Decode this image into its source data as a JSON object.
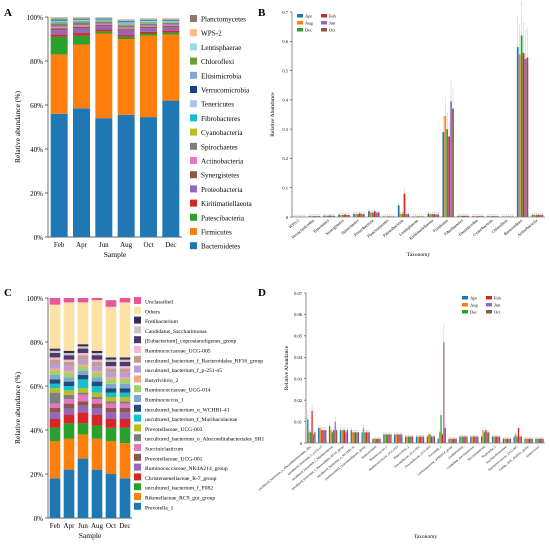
{
  "figure": {
    "panels": [
      {
        "id": "A"
      },
      {
        "id": "B"
      },
      {
        "id": "C"
      },
      {
        "id": "D"
      }
    ]
  },
  "chart_data": [
    {
      "panel": "A",
      "type": "bar",
      "stacked": true,
      "xlabel": "Sample",
      "ylabel": "Relative abundance (%)",
      "ylim": [
        0,
        100
      ],
      "yticks": [
        "0%",
        "20%",
        "40%",
        "60%",
        "80%",
        "100%"
      ],
      "categories": [
        "Feb",
        "Apr",
        "Jun",
        "Aug",
        "Oct",
        "Dec"
      ],
      "legend_position": "right",
      "series": [
        {
          "name": "Bacteroidetes",
          "color": "#1f77b4",
          "values": [
            56,
            58.5,
            54,
            55.5,
            54.5,
            62
          ]
        },
        {
          "name": "Firmicutes",
          "color": "#ff7f0e",
          "values": [
            27,
            29,
            38.5,
            34.5,
            37,
            30
          ]
        },
        {
          "name": "Patescibacteria",
          "color": "#2ca02c",
          "values": [
            8,
            4,
            1,
            1,
            1,
            1
          ]
        },
        {
          "name": "Kiritimatiellaeota",
          "color": "#d62728",
          "values": [
            1,
            1.2,
            0.8,
            0.8,
            0.8,
            0.8
          ]
        },
        {
          "name": "Proteobacteria",
          "color": "#9467bd",
          "values": [
            2,
            2,
            1.5,
            2,
            1.6,
            1.5
          ]
        },
        {
          "name": "Synergistetes",
          "color": "#8c564b",
          "values": [
            0.8,
            0.8,
            0.6,
            0.7,
            0.6,
            0.6
          ]
        },
        {
          "name": "Actinobacteria",
          "color": "#e377c2",
          "values": [
            0.8,
            0.8,
            0.6,
            0.7,
            0.6,
            0.6
          ]
        },
        {
          "name": "Spirochaetes",
          "color": "#7f7f7f",
          "values": [
            1.5,
            1.2,
            0.9,
            1.1,
            0.9,
            0.8
          ]
        },
        {
          "name": "Cyanobacteria",
          "color": "#bcbd22",
          "values": [
            0.4,
            0.4,
            0.3,
            0.4,
            0.4,
            0.3
          ]
        },
        {
          "name": "Fibrobacteres",
          "color": "#17becf",
          "values": [
            0.4,
            0.4,
            0.3,
            0.4,
            0.4,
            0.3
          ]
        },
        {
          "name": "Tenericutes",
          "color": "#aec7e8",
          "values": [
            0.5,
            0.4,
            0.4,
            0.5,
            0.4,
            0.4
          ]
        },
        {
          "name": "Verrucomicrobia",
          "color": "#1b3f8b",
          "values": [
            0.4,
            0.3,
            0.3,
            0.4,
            0.3,
            0.3
          ]
        },
        {
          "name": "Elusimicrobia",
          "color": "#7fa7d4",
          "values": [
            0.3,
            0.3,
            0.2,
            0.3,
            0.3,
            0.2
          ]
        },
        {
          "name": "Chloroflexi",
          "color": "#6b9e3a",
          "values": [
            0.3,
            0.2,
            0.2,
            0.2,
            0.2,
            0.2
          ]
        },
        {
          "name": "Lentisphaerae",
          "color": "#9edae5",
          "values": [
            0.3,
            0.2,
            0.2,
            0.2,
            0.2,
            0.2
          ]
        },
        {
          "name": "WPS-2",
          "color": "#ffbb78",
          "values": [
            0.2,
            0.2,
            0.1,
            0.2,
            0.1,
            0.2
          ]
        },
        {
          "name": "Planctomycetes",
          "color": "#8a7a6a",
          "values": [
            0.2,
            0.1,
            0.1,
            0.1,
            0.1,
            0.1
          ]
        }
      ]
    },
    {
      "panel": "B",
      "type": "bar",
      "xlabel": "Taxonomy",
      "ylabel": "Relative Abundance",
      "ylim": [
        0,
        0.7
      ],
      "yticks": [
        "0",
        "0.1",
        "0.2",
        "0.3",
        "0.4",
        "0.5",
        "0.6",
        "0.7"
      ],
      "legend_position": "top-left",
      "categories": [
        "WPS-2",
        "Verrucomicrobia",
        "Tenericutes",
        "Synergistetes",
        "Spirochaetes",
        "Proteobacteria",
        "Planctomycetes",
        "Patescibacteria",
        "Lentisphaerae",
        "Kiritimatiellaeota",
        "Firmicutes",
        "Fibrobacteres",
        "Elusimicrobia",
        "Cyanobacteria",
        "Chloroflexi",
        "Bacteroidetes",
        "Actinobacteria"
      ],
      "series": [
        {
          "name": "Apr",
          "color": "#1f77b4",
          "values": [
            0.001,
            0.003,
            0.005,
            0.008,
            0.011,
            0.02,
            0.002,
            0.04,
            0.002,
            0.012,
            0.29,
            0.004,
            0.003,
            0.003,
            0.002,
            0.58,
            0.008
          ]
        },
        {
          "name": "Aug",
          "color": "#ff7f0e",
          "values": [
            0.001,
            0.003,
            0.004,
            0.007,
            0.01,
            0.016,
            0.002,
            0.01,
            0.002,
            0.01,
            0.345,
            0.004,
            0.003,
            0.003,
            0.002,
            0.555,
            0.007
          ]
        },
        {
          "name": "Dec",
          "color": "#2ca02c",
          "values": [
            0.001,
            0.003,
            0.004,
            0.007,
            0.01,
            0.015,
            0.002,
            0.012,
            0.002,
            0.01,
            0.3,
            0.004,
            0.003,
            0.003,
            0.002,
            0.62,
            0.007
          ]
        },
        {
          "name": "Feb",
          "color": "#d62728",
          "values": [
            0.001,
            0.003,
            0.005,
            0.009,
            0.013,
            0.02,
            0.002,
            0.08,
            0.002,
            0.01,
            0.275,
            0.004,
            0.003,
            0.003,
            0.002,
            0.56,
            0.008
          ]
        },
        {
          "name": "Jun",
          "color": "#9467bd",
          "values": [
            0.001,
            0.003,
            0.004,
            0.007,
            0.01,
            0.015,
            0.002,
            0.01,
            0.002,
            0.009,
            0.395,
            0.004,
            0.003,
            0.003,
            0.002,
            0.54,
            0.007
          ]
        },
        {
          "name": "Oct",
          "color": "#8c564b",
          "values": [
            0.001,
            0.003,
            0.004,
            0.007,
            0.01,
            0.016,
            0.002,
            0.01,
            0.002,
            0.009,
            0.37,
            0.004,
            0.003,
            0.003,
            0.002,
            0.545,
            0.007
          ]
        }
      ]
    },
    {
      "panel": "C",
      "type": "bar",
      "stacked": true,
      "xlabel": "Sample",
      "ylabel": "Relative abundance (%)",
      "ylim": [
        0,
        100
      ],
      "yticks": [
        "0%",
        "20%",
        "40%",
        "60%",
        "80%",
        "100%"
      ],
      "categories": [
        "Feb",
        "Apr",
        "Jun",
        "Aug",
        "Oct",
        "Dec"
      ],
      "legend_position": "right",
      "series": [
        {
          "name": "Prevotella_1",
          "color": "#1f77b4",
          "values": [
            18,
            22,
            27,
            22,
            20,
            18
          ]
        },
        {
          "name": "Rikenellaceae_RC9_gut_group",
          "color": "#ff7f0e",
          "values": [
            17,
            14,
            11,
            14,
            15,
            16
          ]
        },
        {
          "name": "uncultured_bacterium_f_F082",
          "color": "#2ca02c",
          "values": [
            6,
            7,
            5,
            6,
            6,
            7
          ]
        },
        {
          "name": "Christensenellaceae_R-7_group",
          "color": "#d62728",
          "values": [
            4,
            4,
            5,
            5,
            4,
            4
          ]
        },
        {
          "name": "Ruminococcaceae_NK4A214_group",
          "color": "#9467bd",
          "values": [
            3,
            3,
            3,
            3,
            3,
            3
          ]
        },
        {
          "name": "Prevotellaceae_UCG-001",
          "color": "#8c564b",
          "values": [
            2,
            2,
            2,
            2,
            2,
            2
          ]
        },
        {
          "name": "Succiniclasticum",
          "color": "#e377c2",
          "values": [
            2,
            2,
            3,
            2,
            2,
            2
          ]
        },
        {
          "name": "uncultured_bacterium_o_Absconditabacteriales_SR1",
          "color": "#7f7f7f",
          "values": [
            5,
            2,
            1,
            1,
            1,
            1
          ]
        },
        {
          "name": "Prevotellaceae_UCG-003",
          "color": "#bcbd22",
          "values": [
            2,
            2,
            2,
            2,
            2,
            2
          ]
        },
        {
          "name": "uncultured_bacterium_f_Muribaculaceae",
          "color": "#17becf",
          "values": [
            2,
            2,
            4,
            3,
            2,
            2
          ]
        },
        {
          "name": "uncultured_bacterium_o_WCHB1-41",
          "color": "#1f4e79",
          "values": [
            2,
            2,
            2,
            2,
            2,
            2
          ]
        },
        {
          "name": "Ruminococcus_1",
          "color": "#7fa7d4",
          "values": [
            2,
            2,
            2,
            2,
            2,
            2
          ]
        },
        {
          "name": "Ruminococcaceae_UCG-014",
          "color": "#9ed36a",
          "values": [
            2,
            2,
            2,
            2,
            2,
            2
          ]
        },
        {
          "name": "Butyrivibrio_2",
          "color": "#f4a582",
          "values": [
            1,
            1,
            1,
            1,
            1,
            1
          ]
        },
        {
          "name": "uncultured_bacterium_f_p-251-o5",
          "color": "#b79ed8",
          "values": [
            2,
            2,
            2,
            2,
            2,
            2
          ]
        },
        {
          "name": "uncultured_bacterium_f_Bacteroidales_RF16_group",
          "color": "#c49c94",
          "values": [
            2,
            2,
            2,
            2,
            2,
            2
          ]
        },
        {
          "name": "Ruminococcaceae_UCG-005",
          "color": "#f7b6d2",
          "values": [
            1,
            1,
            1,
            1,
            1,
            1
          ]
        },
        {
          "name": "[Eubacterium]_coprostanoligenes_group",
          "color": "#4b3b6b",
          "values": [
            2,
            2,
            2,
            2,
            2,
            2
          ]
        },
        {
          "name": "Candidatus_Saccharimonas",
          "color": "#c7c7c7",
          "values": [
            1,
            1,
            1,
            1,
            1,
            1
          ]
        },
        {
          "name": "Fretibacterium",
          "color": "#3a2a5a",
          "values": [
            1,
            1,
            1,
            1,
            1,
            1
          ]
        },
        {
          "name": "Others",
          "color": "#fde2a6",
          "values": [
            20,
            22,
            19,
            23,
            23,
            25
          ]
        },
        {
          "name": "Unclassified",
          "color": "#e8559a",
          "values": [
            4,
            4,
            3,
            3,
            3,
            2
          ]
        }
      ]
    },
    {
      "panel": "D",
      "type": "bar",
      "xlabel": "Taxonomy",
      "ylabel": "Relative Abundance",
      "ylim": [
        0,
        0.07
      ],
      "yticks": [
        "0",
        "0.01",
        "0.02",
        "0.03",
        "0.04",
        "0.05",
        "0.06",
        "0.07"
      ],
      "legend_position": "top-right",
      "categories": [
        "uncultured_bacterium_o_Absconditabacteriales_SR1",
        "uncultured_bacterium_f_p-251-o5",
        "uncultured_bacterium_f_Muribaculaceae",
        "uncultured_bacterium_f_Bacteroidales_RF16_group",
        "uncultured_bacterium_o_WCHB1-41",
        "[Eubacterium]_coprostanoligenes_group",
        "Sphaerochaeta",
        "Ruminococcus_1",
        "Ruminococcaceae_UCG-014",
        "Butyrivibrio_2",
        "Prevotellaceae_UCG-001",
        "Prevotellaceae_UCG-003",
        "Prevotella_1",
        "Lachnospiraceae_XPB1014_group",
        "Fretibacterium",
        "Candidatus_Saccharimonas",
        "Succiniclasticum",
        "Treponema_2",
        "Saccharofermentans",
        "Ruminococcaceae_UCG-005",
        "Family_XIII_AD3011_group",
        "Anaerovorax"
      ],
      "series": [
        {
          "name": "Apr",
          "color": "#1f77b4",
          "values": [
            0.011,
            0.007,
            0.008,
            0.006,
            0.006,
            0.005,
            0.002,
            0.004,
            0.004,
            0.003,
            0.003,
            0.003,
            0.002,
            0.002,
            0.003,
            0.003,
            0.003,
            0.003,
            0.002,
            0.003,
            0.002,
            0.002
          ]
        },
        {
          "name": "Aug",
          "color": "#ff7f0e",
          "values": [
            0.005,
            0.007,
            0.006,
            0.006,
            0.005,
            0.007,
            0.002,
            0.004,
            0.004,
            0.003,
            0.003,
            0.004,
            0.005,
            0.002,
            0.003,
            0.003,
            0.006,
            0.003,
            0.002,
            0.004,
            0.002,
            0.002
          ]
        },
        {
          "name": "Dec",
          "color": "#2ca02c",
          "values": [
            0.005,
            0.006,
            0.005,
            0.006,
            0.005,
            0.005,
            0.002,
            0.004,
            0.004,
            0.003,
            0.003,
            0.004,
            0.013,
            0.002,
            0.003,
            0.003,
            0.005,
            0.003,
            0.002,
            0.003,
            0.002,
            0.002
          ]
        },
        {
          "name": "Feb",
          "color": "#d62728",
          "values": [
            0.015,
            0.006,
            0.006,
            0.006,
            0.005,
            0.005,
            0.002,
            0.004,
            0.004,
            0.003,
            0.003,
            0.003,
            0.004,
            0.002,
            0.003,
            0.003,
            0.006,
            0.003,
            0.002,
            0.007,
            0.002,
            0.002
          ]
        },
        {
          "name": "Jun",
          "color": "#9467bd",
          "values": [
            0.004,
            0.006,
            0.01,
            0.005,
            0.005,
            0.005,
            0.002,
            0.004,
            0.004,
            0.003,
            0.003,
            0.003,
            0.047,
            0.002,
            0.003,
            0.003,
            0.005,
            0.003,
            0.002,
            0.003,
            0.002,
            0.002
          ]
        },
        {
          "name": "Oct",
          "color": "#8c564b",
          "values": [
            0.005,
            0.006,
            0.006,
            0.006,
            0.005,
            0.005,
            0.002,
            0.004,
            0.004,
            0.003,
            0.003,
            0.003,
            0.007,
            0.002,
            0.003,
            0.003,
            0.005,
            0.003,
            0.002,
            0.003,
            0.002,
            0.002
          ]
        }
      ]
    }
  ]
}
